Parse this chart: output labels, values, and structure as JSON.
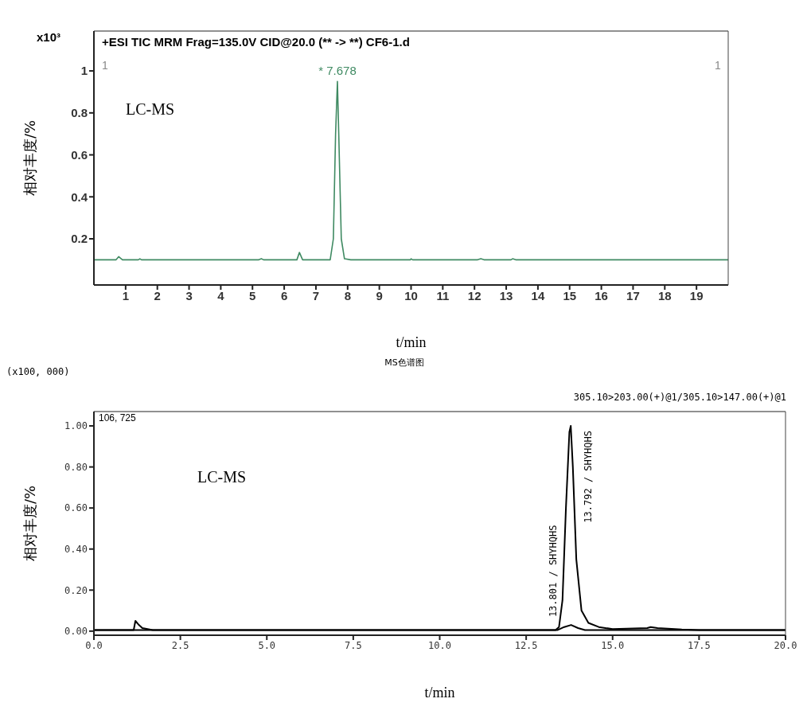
{
  "chart_data": [
    {
      "type": "line",
      "title": "+ESI TIC MRM Frag=135.0V CID@20.0 (** -> **) CF6-1.d",
      "xlabel": "t/min",
      "ylabel": "相对丰度/%",
      "xlim": [
        0,
        20
      ],
      "xticks": [
        1,
        2,
        3,
        4,
        5,
        6,
        7,
        8,
        9,
        10,
        11,
        12,
        13,
        14,
        15,
        16,
        17,
        18,
        19
      ],
      "ylim": [
        -0.02,
        1.19
      ],
      "yticks": [
        0.2,
        0.4,
        0.6,
        0.8,
        1
      ],
      "grid": false,
      "legend": false,
      "marker": "none",
      "line_style": "solid",
      "series": [
        {
          "color": "#3f8a62",
          "x": [
            0,
            0.7,
            0.78,
            0.9,
            1.4,
            1.45,
            1.5,
            5.2,
            5.28,
            5.35,
            5.9,
            6.4,
            6.48,
            6.58,
            7.45,
            7.55,
            7.62,
            7.678,
            7.72,
            7.8,
            7.9,
            8.1,
            9.98,
            10.0,
            10.05,
            12.1,
            12.2,
            12.3,
            13.15,
            13.2,
            13.3,
            20
          ],
          "values": [
            0.1,
            0.1,
            0.115,
            0.1,
            0.1,
            0.105,
            0.1,
            0.1,
            0.105,
            0.1,
            0.1,
            0.1,
            0.135,
            0.1,
            0.1,
            0.2,
            0.7,
            0.95,
            0.7,
            0.2,
            0.105,
            0.1,
            0.1,
            0.105,
            0.1,
            0.1,
            0.105,
            0.1,
            0.1,
            0.105,
            0.1,
            0.1
          ]
        }
      ],
      "annotations": [
        {
          "text": "* 7.678",
          "x": 7.678,
          "y": 0.95
        },
        "x10³",
        "1",
        "1",
        "LC-MS"
      ]
    },
    {
      "type": "line",
      "title": "MS色谱图",
      "subtitle": "305.10>203.00(+)@1/305.10>147.00(+)@1",
      "xlabel": "t/min",
      "ylabel": "相对丰度/%",
      "xlim": [
        0,
        20
      ],
      "xticks": [
        {
          "value": 0,
          "label": "0.0"
        },
        {
          "value": 2.5,
          "label": "2.5"
        },
        {
          "value": 5,
          "label": "5.0"
        },
        {
          "value": 7.5,
          "label": "7.5"
        },
        {
          "value": 10,
          "label": "10.0"
        },
        {
          "value": 12.5,
          "label": "12.5"
        },
        {
          "value": 15,
          "label": "15.0"
        },
        {
          "value": 17.5,
          "label": "17.5"
        },
        {
          "value": 20,
          "label": "20.0"
        }
      ],
      "ylim": [
        -0.02,
        1.07
      ],
      "yticks": [
        {
          "value": 0,
          "label": "0.00"
        },
        {
          "value": 0.2,
          "label": "0.20"
        },
        {
          "value": 0.4,
          "label": "0.40"
        },
        {
          "value": 0.6,
          "label": "0.60"
        },
        {
          "value": 0.8,
          "label": "0.80"
        },
        {
          "value": 1,
          "label": "1.00"
        }
      ],
      "grid": false,
      "legend": false,
      "marker": "none",
      "line_style": "solid",
      "series": [
        {
          "color": "#000000",
          "x": [
            0,
            1.15,
            1.2,
            1.3,
            1.4,
            1.7,
            13.35,
            13.45,
            13.55,
            13.65,
            13.75,
            13.79,
            13.85,
            13.95,
            14.1,
            14.3,
            14.6,
            15,
            16,
            16.1,
            16.3,
            17,
            17.5,
            20
          ],
          "values": [
            0.005,
            0.005,
            0.05,
            0.03,
            0.015,
            0.005,
            0.005,
            0.02,
            0.15,
            0.6,
            0.97,
            1.0,
            0.8,
            0.35,
            0.1,
            0.04,
            0.02,
            0.01,
            0.015,
            0.02,
            0.015,
            0.008,
            0.005,
            0.005
          ]
        },
        {
          "color": "#000000",
          "x": [
            0,
            13.4,
            13.6,
            13.8,
            14,
            14.2,
            20
          ],
          "values": [
            0.005,
            0.005,
            0.02,
            0.03,
            0.015,
            0.005,
            0.005
          ]
        }
      ],
      "annotations": [
        {
          "text": "13.792 / SHYHQHS",
          "x": 13.792,
          "y": 1.0
        },
        {
          "text": "13.801 / SHYHQHS",
          "x": 13.801,
          "y": 0.03
        },
        "(x100, 000)",
        "106, 725",
        "LC-MS"
      ]
    }
  ]
}
